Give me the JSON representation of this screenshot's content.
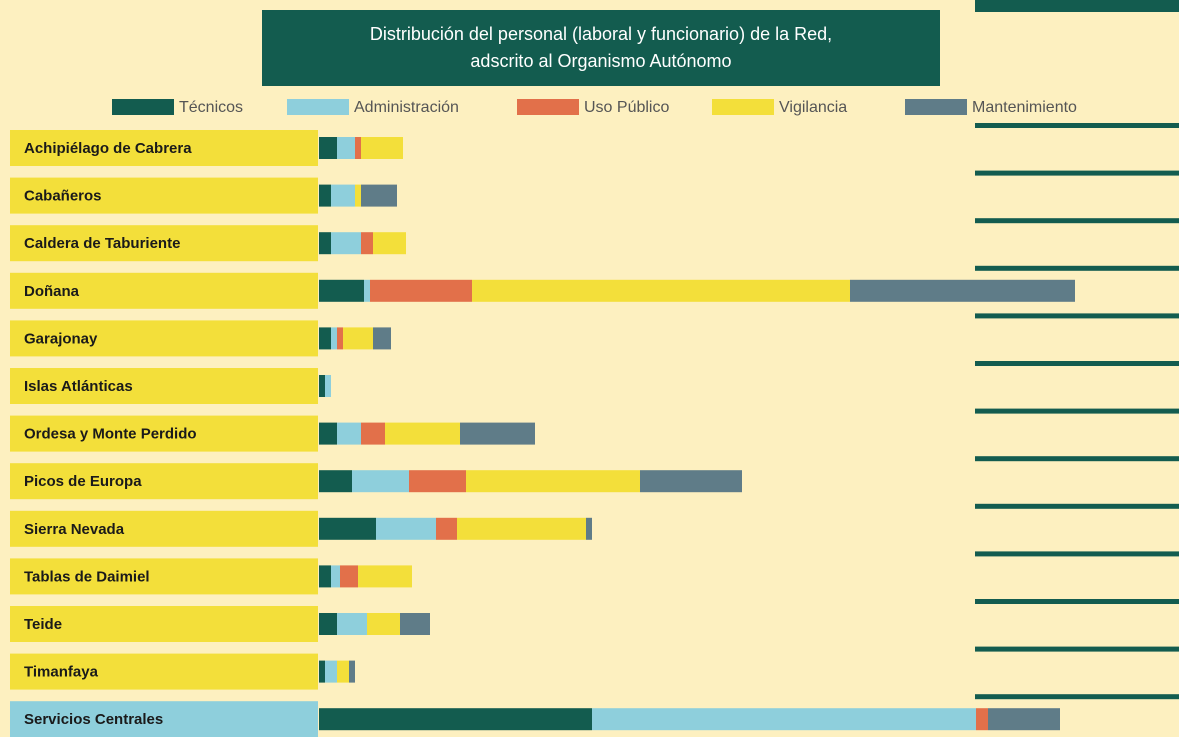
{
  "chart_data": {
    "type": "stacked-barh",
    "title": [
      "Distribución del personal (laboral y funcionario) de la Red,",
      "adscrito al Organismo Autónomo"
    ],
    "categories": [
      "Achipiélago de Cabrera",
      "Cabañeros",
      "Caldera de Taburiente",
      "Doñana",
      "Garajonay",
      "Islas Atlánticas",
      "Ordesa y Monte Perdido",
      "Picos de Europa",
      "Sierra Nevada",
      "Tablas de Daimiel",
      "Teide",
      "Timanfaya",
      "Servicios Centrales"
    ],
    "series": [
      {
        "name": "Técnicos",
        "color": "#135c4f",
        "values": [
          6,
          4,
          4,
          15,
          4,
          2,
          6,
          11,
          19,
          4,
          6,
          2,
          91
        ]
      },
      {
        "name": "Administración",
        "color": "#8ecfdc",
        "values": [
          6,
          8,
          10,
          2,
          2,
          2,
          8,
          19,
          20,
          3,
          10,
          4,
          128
        ]
      },
      {
        "name": "Uso Público",
        "color": "#e2704a",
        "values": [
          2,
          0,
          4,
          34,
          2,
          0,
          8,
          19,
          7,
          6,
          0,
          0,
          4
        ]
      },
      {
        "name": "Vigilancia",
        "color": "#f3df3a",
        "values": [
          14,
          2,
          11,
          126,
          10,
          0,
          25,
          58,
          43,
          18,
          11,
          4,
          0
        ]
      },
      {
        "name": "Mantenimiento",
        "color": "#5f7c88",
        "values": [
          0,
          12,
          0,
          75,
          6,
          0,
          25,
          34,
          2,
          0,
          10,
          2,
          24
        ]
      }
    ]
  }
}
